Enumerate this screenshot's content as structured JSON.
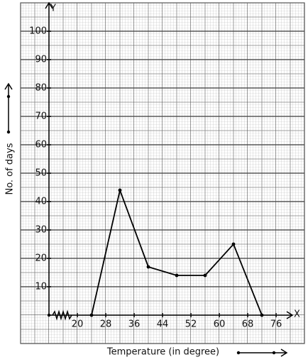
{
  "chart_data": {
    "type": "line",
    "x_label": "Temperature (in degree)",
    "y_label": "No. of days",
    "x_axis_name": "X",
    "y_axis_name": "Y",
    "x": [
      24,
      32,
      40,
      48,
      56,
      64,
      72
    ],
    "series": [
      {
        "color": "#000000",
        "values": [
          0,
          44,
          17,
          14,
          14,
          25,
          0
        ]
      }
    ],
    "xlim": [
      12,
      80
    ],
    "ylim": [
      0,
      110
    ],
    "xticks": [
      20,
      28,
      36,
      44,
      52,
      60,
      68,
      76
    ],
    "yticks": [
      10,
      20,
      30,
      40,
      50,
      60,
      70,
      80,
      90,
      100
    ],
    "grid": true
  }
}
